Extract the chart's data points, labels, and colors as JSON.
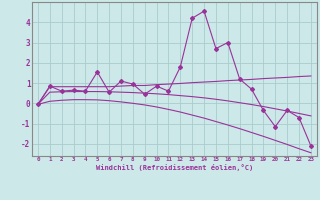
{
  "xlabel": "Windchill (Refroidissement éolien,°C)",
  "x_values": [
    0,
    1,
    2,
    3,
    4,
    5,
    6,
    7,
    8,
    9,
    10,
    11,
    12,
    13,
    14,
    15,
    16,
    17,
    18,
    19,
    20,
    21,
    22,
    23
  ],
  "y_main": [
    -0.05,
    0.85,
    0.6,
    0.65,
    0.6,
    1.55,
    0.55,
    1.1,
    0.95,
    0.45,
    0.85,
    0.6,
    1.8,
    4.2,
    4.55,
    2.7,
    3.0,
    1.2,
    0.7,
    -0.35,
    -1.15,
    -0.35,
    -0.7,
    -2.1
  ],
  "y_trend1": [
    -0.05,
    0.82,
    0.82,
    0.82,
    0.82,
    0.82,
    0.82,
    0.85,
    0.88,
    0.88,
    0.92,
    0.95,
    0.98,
    1.02,
    1.05,
    1.08,
    1.12,
    1.15,
    1.18,
    1.22,
    1.25,
    1.28,
    1.32,
    1.35
  ],
  "y_trend2": [
    -0.05,
    0.55,
    0.57,
    0.58,
    0.58,
    0.58,
    0.57,
    0.55,
    0.53,
    0.5,
    0.47,
    0.43,
    0.38,
    0.33,
    0.27,
    0.2,
    0.12,
    0.03,
    -0.06,
    -0.16,
    -0.27,
    -0.38,
    -0.5,
    -0.62
  ],
  "y_linear": [
    -0.05,
    0.1,
    0.15,
    0.18,
    0.18,
    0.17,
    0.13,
    0.07,
    0.0,
    -0.08,
    -0.18,
    -0.3,
    -0.43,
    -0.58,
    -0.73,
    -0.9,
    -1.07,
    -1.25,
    -1.44,
    -1.63,
    -1.83,
    -2.03,
    -2.24,
    -2.44
  ],
  "line_color": "#993399",
  "bg_color": "#cce8e8",
  "grid_color": "#aacccc",
  "ylim": [
    -2.6,
    5.0
  ],
  "xlim": [
    -0.5,
    23.5
  ],
  "yticks": [
    -2,
    -1,
    0,
    1,
    2,
    3,
    4
  ],
  "xticks": [
    0,
    1,
    2,
    3,
    4,
    5,
    6,
    7,
    8,
    9,
    10,
    11,
    12,
    13,
    14,
    15,
    16,
    17,
    18,
    19,
    20,
    21,
    22,
    23
  ]
}
